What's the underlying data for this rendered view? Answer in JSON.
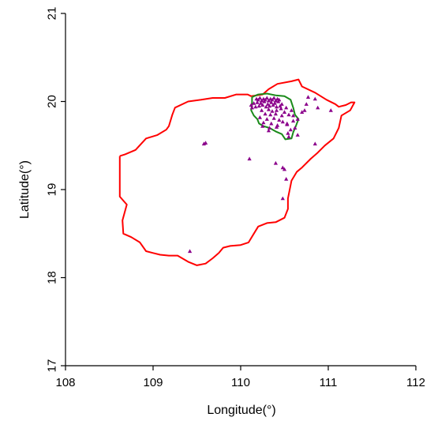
{
  "chart_data": {
    "type": "scatter",
    "title": "",
    "xlabel": "Longitude(°)",
    "ylabel": "Latitude(°)",
    "xlim": [
      108,
      112
    ],
    "ylim": [
      17,
      21
    ],
    "xticks": [
      108,
      109,
      110,
      111,
      112
    ],
    "yticks": [
      17,
      18,
      19,
      20,
      21
    ],
    "xtick_labels": [
      "108",
      "109",
      "110",
      "111",
      "112"
    ],
    "ytick_labels": [
      "17",
      "18",
      "19",
      "20",
      "21"
    ],
    "grid": false,
    "legend": false,
    "colors": {
      "island_outline": "#ff0000",
      "region_outline": "#1a8a1a",
      "points": "#8b008b",
      "axis": "#000000"
    },
    "island_outline": [
      [
        108.62,
        19.38
      ],
      [
        108.68,
        19.4
      ],
      [
        108.8,
        19.45
      ],
      [
        108.92,
        19.58
      ],
      [
        109.05,
        19.62
      ],
      [
        109.15,
        19.68
      ],
      [
        109.18,
        19.72
      ],
      [
        109.22,
        19.85
      ],
      [
        109.25,
        19.93
      ],
      [
        109.4,
        20.0
      ],
      [
        109.55,
        20.02
      ],
      [
        109.68,
        20.04
      ],
      [
        109.82,
        20.04
      ],
      [
        109.95,
        20.08
      ],
      [
        110.08,
        20.08
      ],
      [
        110.12,
        20.06
      ],
      [
        110.25,
        20.08
      ],
      [
        110.32,
        20.14
      ],
      [
        110.42,
        20.2
      ],
      [
        110.58,
        20.23
      ],
      [
        110.66,
        20.25
      ],
      [
        110.7,
        20.17
      ],
      [
        110.85,
        20.1
      ],
      [
        110.98,
        20.02
      ],
      [
        111.08,
        19.97
      ],
      [
        111.12,
        19.94
      ],
      [
        111.2,
        19.96
      ],
      [
        111.26,
        19.99
      ],
      [
        111.3,
        19.99
      ],
      [
        111.25,
        19.9
      ],
      [
        111.15,
        19.84
      ],
      [
        111.12,
        19.7
      ],
      [
        111.06,
        19.58
      ],
      [
        110.96,
        19.5
      ],
      [
        110.88,
        19.42
      ],
      [
        110.8,
        19.35
      ],
      [
        110.7,
        19.25
      ],
      [
        110.64,
        19.2
      ],
      [
        110.58,
        19.1
      ],
      [
        110.54,
        18.9
      ],
      [
        110.54,
        18.78
      ],
      [
        110.5,
        18.68
      ],
      [
        110.4,
        18.63
      ],
      [
        110.3,
        18.62
      ],
      [
        110.2,
        18.58
      ],
      [
        110.15,
        18.5
      ],
      [
        110.09,
        18.4
      ],
      [
        110.0,
        18.37
      ],
      [
        109.88,
        18.36
      ],
      [
        109.8,
        18.34
      ],
      [
        109.75,
        18.28
      ],
      [
        109.68,
        18.22
      ],
      [
        109.6,
        18.16
      ],
      [
        109.5,
        18.14
      ],
      [
        109.4,
        18.18
      ],
      [
        109.28,
        18.25
      ],
      [
        109.18,
        18.25
      ],
      [
        109.08,
        18.26
      ],
      [
        109.0,
        18.28
      ],
      [
        108.92,
        18.3
      ],
      [
        108.85,
        18.4
      ],
      [
        108.75,
        18.46
      ],
      [
        108.66,
        18.5
      ],
      [
        108.65,
        18.65
      ],
      [
        108.7,
        18.83
      ],
      [
        108.62,
        18.92
      ],
      [
        108.62,
        19.12
      ],
      [
        108.62,
        19.38
      ]
    ],
    "region_outline": [
      [
        110.13,
        20.05
      ],
      [
        110.2,
        20.08
      ],
      [
        110.3,
        20.09
      ],
      [
        110.4,
        20.07
      ],
      [
        110.5,
        20.06
      ],
      [
        110.57,
        20.02
      ],
      [
        110.6,
        19.93
      ],
      [
        110.62,
        19.85
      ],
      [
        110.66,
        19.8
      ],
      [
        110.63,
        19.72
      ],
      [
        110.6,
        19.65
      ],
      [
        110.58,
        19.58
      ],
      [
        110.51,
        19.57
      ],
      [
        110.47,
        19.63
      ],
      [
        110.4,
        19.66
      ],
      [
        110.33,
        19.7
      ],
      [
        110.26,
        19.72
      ],
      [
        110.21,
        19.75
      ],
      [
        110.19,
        19.8
      ],
      [
        110.15,
        19.84
      ],
      [
        110.12,
        19.9
      ],
      [
        110.13,
        19.97
      ],
      [
        110.13,
        20.05
      ]
    ],
    "x": [
      110.18,
      110.2,
      110.22,
      110.24,
      110.26,
      110.28,
      110.3,
      110.32,
      110.34,
      110.36,
      110.38,
      110.4,
      110.42,
      110.44,
      110.19,
      110.23,
      110.27,
      110.31,
      110.35,
      110.39,
      110.43,
      110.47,
      110.21,
      110.25,
      110.29,
      110.33,
      110.37,
      110.41,
      110.45,
      110.15,
      110.17,
      110.12,
      110.13,
      110.24,
      110.32,
      110.36,
      110.41,
      110.46,
      110.52,
      110.28,
      110.34,
      110.4,
      110.47,
      110.5,
      110.22,
      110.3,
      110.38,
      110.44,
      110.55,
      110.58,
      110.26,
      110.35,
      110.48,
      110.53,
      110.6,
      110.62,
      110.25,
      110.33,
      110.41,
      110.57,
      110.65,
      110.85,
      110.88,
      110.77,
      110.75,
      110.73,
      110.7,
      111.03,
      110.65,
      109.58,
      109.6,
      110.32,
      110.1,
      110.48,
      110.5,
      110.52,
      110.4,
      110.55,
      110.42,
      110.6,
      110.53,
      110.85,
      110.48,
      110.54,
      109.42
    ],
    "y": [
      20.03,
      20.02,
      20.04,
      20.01,
      20.03,
      20.02,
      20.04,
      20.01,
      20.03,
      20.02,
      20.04,
      20.01,
      20.03,
      20.02,
      19.99,
      19.98,
      20.0,
      19.97,
      19.99,
      19.98,
      20.0,
      19.97,
      19.95,
      19.96,
      19.94,
      19.95,
      19.96,
      19.94,
      19.95,
      19.98,
      19.94,
      19.96,
      19.93,
      19.9,
      19.91,
      19.89,
      19.9,
      19.92,
      19.93,
      19.86,
      19.85,
      19.86,
      19.84,
      19.88,
      19.82,
      19.8,
      19.81,
      19.79,
      19.85,
      19.9,
      19.76,
      19.75,
      19.77,
      19.74,
      19.78,
      19.7,
      19.72,
      19.7,
      19.71,
      19.68,
      19.8,
      20.03,
      19.93,
      20.05,
      19.97,
      19.9,
      19.88,
      19.9,
      19.62,
      19.52,
      19.53,
      19.67,
      19.35,
      19.25,
      19.23,
      19.12,
      19.3,
      19.6,
      19.73,
      19.84,
      19.75,
      19.52,
      18.9,
      19.64,
      18.3
    ]
  }
}
